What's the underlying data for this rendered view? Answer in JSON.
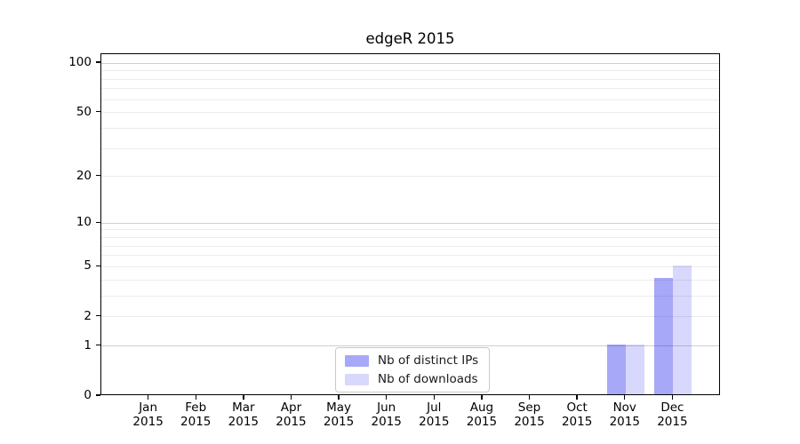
{
  "chart_data": {
    "type": "bar",
    "title": "edgeR 2015",
    "categories": [
      "Jan",
      "Feb",
      "Mar",
      "Apr",
      "May",
      "Jun",
      "Jul",
      "Aug",
      "Sep",
      "Oct",
      "Nov",
      "Dec"
    ],
    "category_year": "2015",
    "series": [
      {
        "name": "Nb of distinct IPs",
        "color": "rgba(10,10,235,0.355)",
        "values": [
          0,
          0,
          0,
          0,
          0,
          0,
          0,
          0,
          0,
          0,
          1,
          4
        ]
      },
      {
        "name": "Nb of downloads",
        "color": "rgba(10,10,235,0.16)",
        "values": [
          0,
          0,
          0,
          0,
          0,
          0,
          0,
          0,
          0,
          0,
          1,
          5
        ]
      }
    ],
    "xlabel": "",
    "ylabel": "",
    "yscale": "log1p",
    "ylim": [
      0,
      113.5
    ],
    "yticks": [
      0,
      1,
      2,
      5,
      10,
      20,
      50,
      100
    ],
    "major_gridlines": [
      1,
      10,
      100
    ],
    "minor_gridlines": [
      2,
      3,
      4,
      5,
      6,
      7,
      8,
      9,
      20,
      30,
      40,
      50,
      60,
      70,
      80,
      90
    ],
    "grid": true,
    "legend": {
      "position": "lower center",
      "entries": [
        "Nb of distinct IPs",
        "Nb of downloads"
      ]
    }
  },
  "colors": {
    "background": "#ffffff",
    "bar_distinct_ips": "#a8a8f8",
    "bar_downloads": "#d9d9f9",
    "grid_major": "#cfcfcf",
    "grid_minor": "#ececec",
    "spine": "#000000",
    "text": "#000000",
    "legend_border": "#c9c9c9"
  }
}
